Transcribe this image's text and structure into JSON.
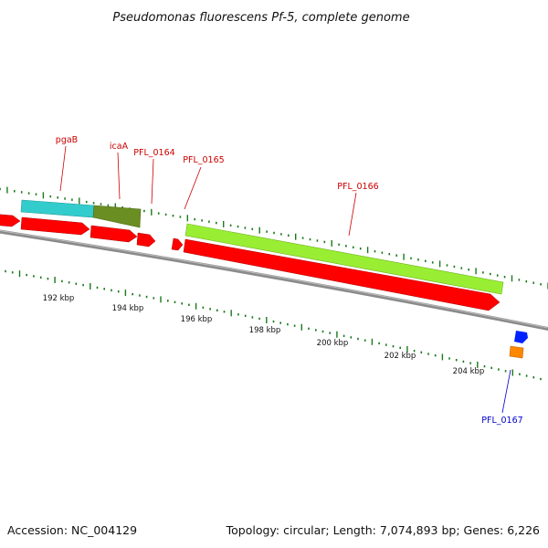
{
  "title": "Pseudomonas fluorescens Pf-5, complete genome",
  "footer": {
    "accession": "Accession: NC_004129",
    "summary": "Topology: circular; Length: 7,074,893 bp; Genes: 6,226"
  },
  "colors": {
    "cds": "#ff0000",
    "backbone": "#808080",
    "tick": "#1a7a1a",
    "label_red": "#cc0000",
    "label_blue": "#0000cc",
    "pgaB": "#33cccc",
    "icaA": "#6b8e23",
    "PFL_0166": "#99ee33",
    "PFL_0167_a": "#0022ff",
    "PFL_0167_b": "#ff8800"
  },
  "ticks": [
    {
      "label": "192 kbp"
    },
    {
      "label": "194 kbp"
    },
    {
      "label": "196 kbp"
    },
    {
      "label": "198 kbp"
    },
    {
      "label": "200 kbp"
    },
    {
      "label": "202 kbp"
    },
    {
      "label": "204 kbp"
    }
  ],
  "genes": [
    {
      "name": "pgaB",
      "color_key": "pgaB",
      "label_color": "label_red"
    },
    {
      "name": "icaA",
      "color_key": "icaA",
      "label_color": "label_red"
    },
    {
      "name": "PFL_0164",
      "color_key": "cds",
      "label_color": "label_red"
    },
    {
      "name": "PFL_0165",
      "color_key": "cds",
      "label_color": "label_red"
    },
    {
      "name": "PFL_0166",
      "color_key": "PFL_0166",
      "label_color": "label_red"
    },
    {
      "name": "PFL_0167",
      "color_key": "PFL_0167_a",
      "label_color": "label_blue"
    }
  ]
}
